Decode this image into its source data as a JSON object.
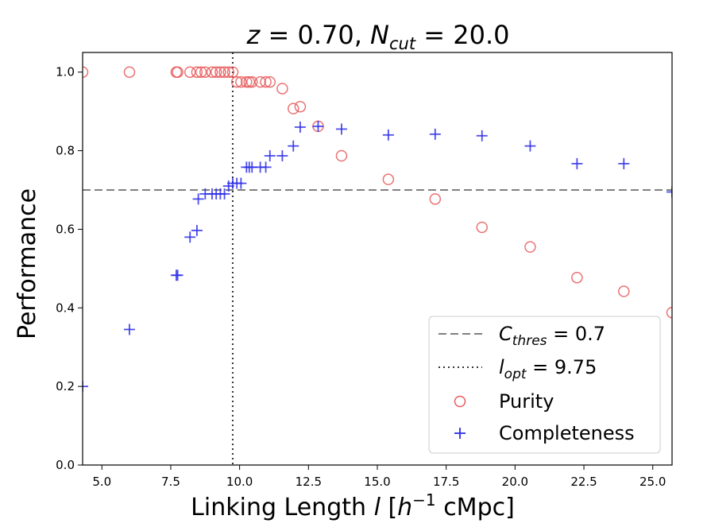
{
  "chart_data": {
    "type": "scatter",
    "title": {
      "z_var": "z",
      "z_eq": " = 0.70, ",
      "n_var": "N",
      "n_sub": "cut",
      "n_eq": " = 20.0"
    },
    "xlabel": {
      "main": "Linking Length ",
      "var": "l",
      "bracket_open": " [",
      "h": "h",
      "exp": "−1",
      "unit": " cMpc]"
    },
    "ylabel": "Performance",
    "xlim": [
      4.3,
      25.7
    ],
    "ylim": [
      0.0,
      1.05
    ],
    "x_ticks": [
      5.0,
      7.5,
      10.0,
      12.5,
      15.0,
      17.5,
      20.0,
      22.5,
      25.0
    ],
    "x_tick_labels": [
      "5.0",
      "7.5",
      "10.0",
      "12.5",
      "15.0",
      "17.5",
      "20.0",
      "22.5",
      "25.0"
    ],
    "y_ticks": [
      0.0,
      0.2,
      0.4,
      0.6,
      0.8,
      1.0
    ],
    "y_tick_labels": [
      "0.0",
      "0.2",
      "0.4",
      "0.6",
      "0.8",
      "1.0"
    ],
    "threshold": {
      "value": 0.7,
      "color": "#808080"
    },
    "optimal": {
      "value": 9.75,
      "color": "#333333"
    },
    "legend": {
      "placement": "lower-right",
      "thres_var": "C",
      "thres_sub": "thres",
      "thres_eq": " = 0.7",
      "opt_var": "l",
      "opt_sub": "opt",
      "opt_eq": " = 9.75",
      "purity": "Purity",
      "completeness": "Completeness"
    },
    "series": [
      {
        "name": "Purity",
        "marker": "circle",
        "color": "#e8595a",
        "x": [
          4.3,
          6.0,
          7.7,
          7.75,
          8.2,
          8.45,
          8.6,
          8.75,
          9.0,
          9.15,
          9.3,
          9.45,
          9.6,
          9.75,
          9.9,
          10.05,
          10.25,
          10.35,
          10.45,
          10.75,
          10.95,
          11.1,
          11.55,
          11.95,
          12.2,
          12.85,
          13.7,
          15.4,
          17.1,
          18.8,
          20.55,
          22.25,
          23.95,
          25.7
        ],
        "y": [
          1.0,
          1.0,
          1.0,
          1.0,
          1.0,
          1.0,
          1.0,
          1.0,
          1.0,
          1.0,
          1.0,
          1.0,
          1.0,
          1.0,
          0.975,
          0.975,
          0.975,
          0.975,
          0.975,
          0.975,
          0.975,
          0.975,
          0.958,
          0.907,
          0.912,
          0.862,
          0.787,
          0.727,
          0.677,
          0.605,
          0.555,
          0.477,
          0.442,
          0.388
        ]
      },
      {
        "name": "Completeness",
        "marker": "plus",
        "color": "#2e2ee8",
        "x": [
          4.3,
          6.0,
          7.7,
          7.75,
          8.2,
          8.45,
          8.5,
          8.75,
          9.0,
          9.15,
          9.3,
          9.45,
          9.6,
          9.75,
          9.9,
          10.05,
          10.25,
          10.35,
          10.45,
          10.75,
          10.95,
          11.1,
          11.55,
          11.95,
          12.2,
          12.85,
          13.7,
          15.4,
          17.1,
          18.8,
          20.55,
          22.25,
          23.95,
          25.7
        ],
        "y": [
          0.2,
          0.345,
          0.483,
          0.483,
          0.58,
          0.597,
          0.677,
          0.69,
          0.69,
          0.69,
          0.69,
          0.69,
          0.71,
          0.717,
          0.717,
          0.717,
          0.758,
          0.758,
          0.758,
          0.758,
          0.758,
          0.787,
          0.787,
          0.812,
          0.86,
          0.862,
          0.855,
          0.84,
          0.842,
          0.838,
          0.812,
          0.767,
          0.767,
          0.695
        ]
      }
    ]
  }
}
